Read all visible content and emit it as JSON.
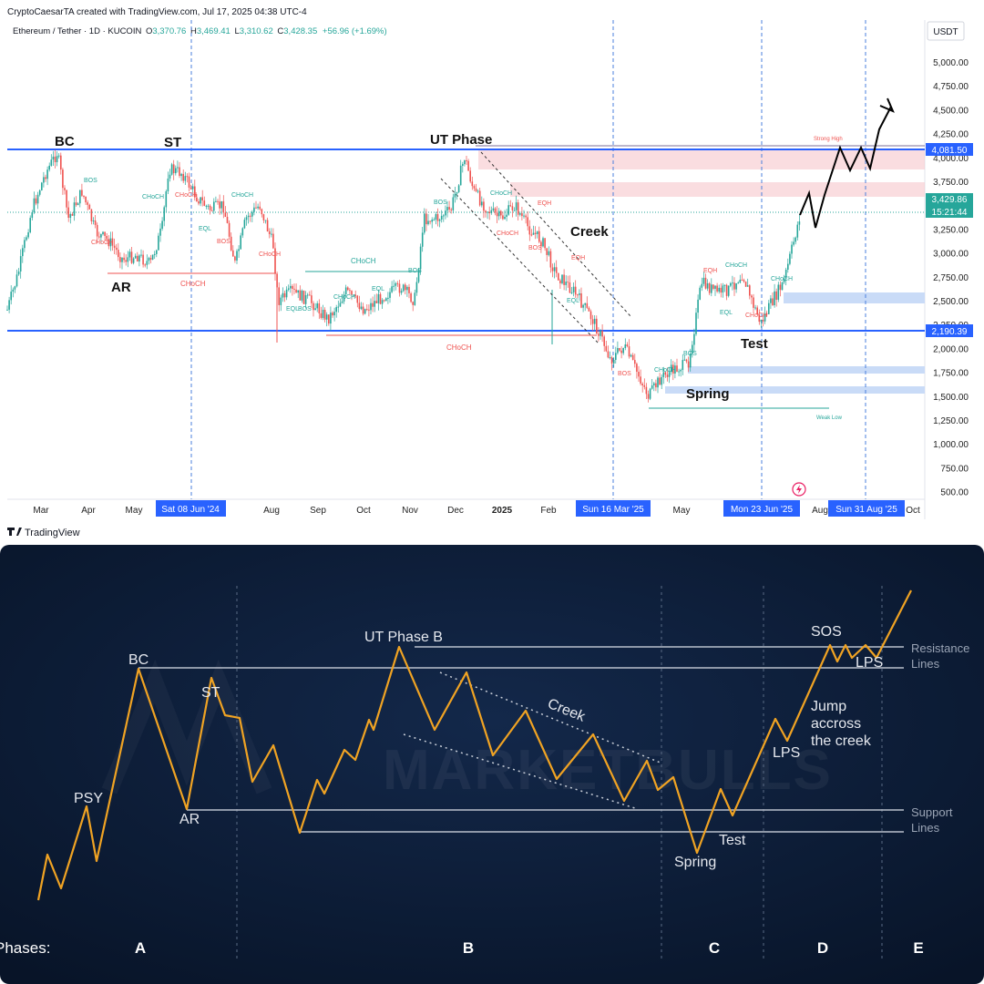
{
  "header": {
    "byline": "CryptoCaesarTA created with TradingView.com, Jul 17, 2025 04:38 UTC-4",
    "symbol": "Ethereum / Tether · 1D · KUCOIN",
    "o_label": "O",
    "o_value": "3,370.76",
    "h_label": "H",
    "h_value": "3,469.41",
    "l_label": "L",
    "l_value": "3,310.62",
    "c_label": "C",
    "c_value": "3,428.35",
    "change": "+56.96 (+1.69%)"
  },
  "colors": {
    "up": "#26a69a",
    "down": "#ef5350",
    "blue_line": "#2962ff",
    "accent_orange": "#f0a323",
    "dark_bg": "#0b1a33"
  },
  "price_axis": {
    "currency": "USDT",
    "ticks": [
      "5,000.00",
      "4,750.00",
      "4,500.00",
      "4,250.00",
      "4,000.00",
      "3,750.00",
      "3,500.00",
      "3,250.00",
      "3,000.00",
      "2,750.00",
      "2,500.00",
      "2,250.00",
      "2,000.00",
      "1,750.00",
      "1,500.00",
      "1,250.00",
      "1,000.00",
      "750.00",
      "500.00"
    ],
    "resistance_badge": "4,081.50",
    "current_price_badge": "3,429.86",
    "countdown_badge": "15:21:44",
    "support_badge": "2,190.39"
  },
  "time_axis": {
    "labels": [
      "Mar",
      "Apr",
      "May",
      "Aug",
      "Sep",
      "Oct",
      "Nov",
      "Dec",
      "2025",
      "Feb",
      "May",
      "Aug",
      "Oct"
    ],
    "date_badges": [
      "Sat 08 Jun '24",
      "Sun 16 Mar '25",
      "Mon 23 Jun '25",
      "Sun 31 Aug '25"
    ]
  },
  "annotations": {
    "bc": "BC",
    "st": "ST",
    "ar": "AR",
    "ut_phase": "UT Phase",
    "creek": "Creek",
    "test": "Test",
    "spring": "Spring",
    "strong_high": "Strong High",
    "weak_low": "Weak Low",
    "choch": "CHoCH",
    "bos": "BOS",
    "eql": "EQL",
    "eqh": "EQH"
  },
  "footer": {
    "brand": "TradingView"
  },
  "schematic": {
    "labels": {
      "psy": "PSY",
      "bc": "BC",
      "ar": "AR",
      "st": "ST",
      "ut": "UT Phase B",
      "creek": "Creek",
      "spring": "Spring",
      "test": "Test",
      "lps": "LPS",
      "lps2": "LPS",
      "sos": "SOS",
      "jump": [
        "Jump",
        "accross",
        "the creek"
      ],
      "resistance": [
        "Resistance",
        "Lines"
      ],
      "support": [
        "Support",
        "Lines"
      ]
    },
    "phases_label": "Phases:",
    "phases": [
      "A",
      "B",
      "C",
      "D",
      "E"
    ],
    "watermark": "MARKETBULLS"
  },
  "chart_data": {
    "type": "line",
    "title": "",
    "xlabel": "",
    "ylabel": "USDT",
    "ylim": [
      500,
      5000
    ],
    "series": [],
    "x": [
      "Mar",
      "Apr",
      "May",
      "Aug",
      "Sep",
      "Oct",
      "Nov",
      "Dec",
      "2025",
      "Feb",
      "May",
      "Aug",
      "Oct"
    ],
    "levels": {
      "resistance": 4081.5,
      "support": 2190.39,
      "last": 3429.86
    }
  }
}
